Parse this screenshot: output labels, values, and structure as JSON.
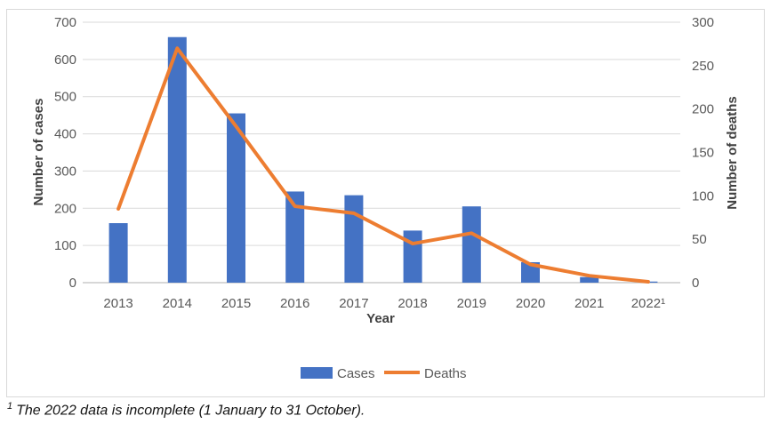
{
  "chart_data": {
    "type": "bar",
    "title": "",
    "categories": [
      "2013",
      "2014",
      "2015",
      "2016",
      "2017",
      "2018",
      "2019",
      "2020",
      "2021",
      "2022¹"
    ],
    "series": [
      {
        "name": "Cases",
        "chart": "bar",
        "axis": "left",
        "color": "#4472C4",
        "values": [
          160,
          660,
          455,
          245,
          235,
          140,
          205,
          55,
          15,
          3
        ]
      },
      {
        "name": "Deaths",
        "chart": "line",
        "axis": "right",
        "color": "#ED7D31",
        "values": [
          85,
          270,
          180,
          88,
          80,
          45,
          57,
          21,
          8,
          1
        ]
      }
    ],
    "xlabel": "Year",
    "ylabel_left": "Number of cases",
    "ylabel_right": "Number of deaths",
    "ylim_left": [
      0,
      700
    ],
    "ylim_right": [
      0,
      300
    ],
    "left_ticks": [
      0,
      100,
      200,
      300,
      400,
      500,
      600,
      700
    ],
    "right_ticks": [
      0,
      50,
      100,
      150,
      200,
      250,
      300
    ],
    "grid": true,
    "legend_position": "bottom"
  },
  "footnote": {
    "sup": "1",
    "text": "The 2022 data is incomplete (1 January to 31 October)."
  },
  "colors": {
    "bar": "#4472C4",
    "line": "#ED7D31",
    "tick_text": "#595959",
    "axis_title": "#404040",
    "gridline": "#D9D9D9",
    "axis_line": "#BFBFBF",
    "frame_border": "#D9D9D9",
    "background": "#FFFFFF"
  }
}
